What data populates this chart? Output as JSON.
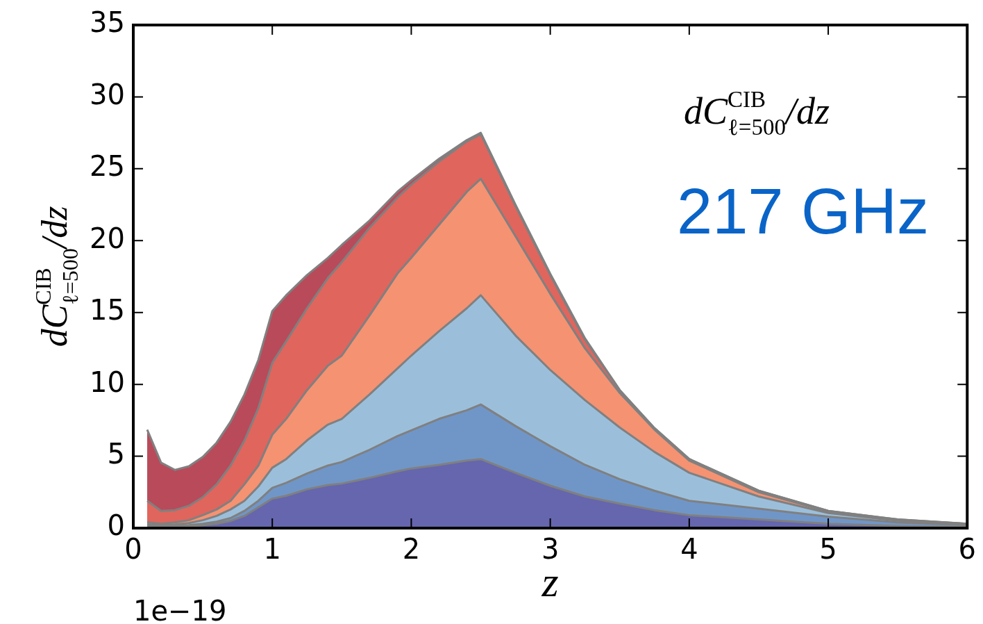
{
  "chart_data": {
    "type": "area",
    "stacked": true,
    "x": [
      0.1,
      0.2,
      0.3,
      0.4,
      0.5,
      0.6,
      0.7,
      0.8,
      0.9,
      1.0,
      1.1,
      1.25,
      1.4,
      1.5,
      1.7,
      1.9,
      2.0,
      2.2,
      2.4,
      2.5,
      2.75,
      3.0,
      3.25,
      3.5,
      3.75,
      4.0,
      4.5,
      5.0,
      5.5,
      6.0
    ],
    "series": [
      {
        "color": "#6566ae",
        "values": [
          0.05,
          0.05,
          0.08,
          0.12,
          0.2,
          0.3,
          0.5,
          0.85,
          1.45,
          2.05,
          2.25,
          2.7,
          3.0,
          3.1,
          3.5,
          3.95,
          4.15,
          4.4,
          4.7,
          4.8,
          3.85,
          2.95,
          2.2,
          1.7,
          1.25,
          0.9,
          0.6,
          0.3,
          0.15,
          0.07
        ]
      },
      {
        "color": "#7096c8",
        "values": [
          0.1,
          0.07,
          0.07,
          0.08,
          0.1,
          0.15,
          0.2,
          0.35,
          0.45,
          0.75,
          0.9,
          1.1,
          1.35,
          1.5,
          1.95,
          2.45,
          2.65,
          3.2,
          3.5,
          3.8,
          3.25,
          2.75,
          2.2,
          1.7,
          1.35,
          1.0,
          0.75,
          0.5,
          0.25,
          0.13
        ]
      },
      {
        "color": "#9bbfdb",
        "values": [
          0.1,
          0.08,
          0.1,
          0.15,
          0.25,
          0.4,
          0.6,
          0.7,
          1.0,
          1.4,
          1.65,
          2.3,
          2.85,
          3.0,
          3.85,
          4.7,
          5.2,
          6.1,
          7.1,
          7.6,
          6.3,
          5.3,
          4.5,
          3.6,
          2.7,
          1.95,
          0.85,
          0.25,
          0.12,
          0.07
        ]
      },
      {
        "color": "#f59272",
        "values": [
          0.15,
          0.1,
          0.15,
          0.2,
          0.35,
          0.45,
          0.6,
          1.15,
          1.45,
          2.3,
          2.8,
          3.5,
          4.1,
          4.4,
          5.5,
          6.6,
          6.8,
          7.4,
          8.1,
          8.1,
          6.9,
          5.3,
          3.6,
          2.4,
          1.55,
          0.85,
          0.3,
          0.1,
          0.05,
          0.02
        ]
      },
      {
        "color": "#e0655d",
        "values": [
          1.5,
          0.9,
          0.85,
          1.0,
          1.25,
          1.75,
          2.45,
          3.05,
          4.0,
          5.0,
          5.4,
          5.7,
          6.1,
          6.5,
          6.1,
          5.3,
          5.1,
          4.4,
          3.5,
          3.1,
          2.1,
          1.3,
          0.6,
          0.2,
          0.1,
          0.1,
          0.1,
          0.05,
          0.03,
          0.01
        ]
      },
      {
        "color": "#b94a5a",
        "values": [
          4.95,
          3.35,
          2.8,
          2.75,
          2.8,
          2.9,
          3.05,
          3.2,
          3.35,
          3.6,
          3.2,
          2.3,
          1.4,
          1.2,
          0.5,
          0.4,
          0.3,
          0.2,
          0.1,
          0.1,
          0.1,
          0.1,
          0.1,
          0,
          0,
          0,
          0,
          0,
          0,
          0
        ]
      }
    ],
    "xlim": [
      0,
      6
    ],
    "xticks": [
      0,
      1,
      2,
      3,
      4,
      5,
      6
    ],
    "ylim": [
      0,
      35
    ],
    "yticks": [
      0,
      5,
      10,
      15,
      20,
      25,
      30,
      35
    ],
    "xlabel": "z",
    "ylabel": "dC$^{CIB}$$_{ℓ=500}$/dz",
    "annotations": [
      "dC$^{CIB}$$_{ℓ=500}$/dz",
      "217 GHz",
      "1e−19"
    ],
    "legend": false
  }
}
